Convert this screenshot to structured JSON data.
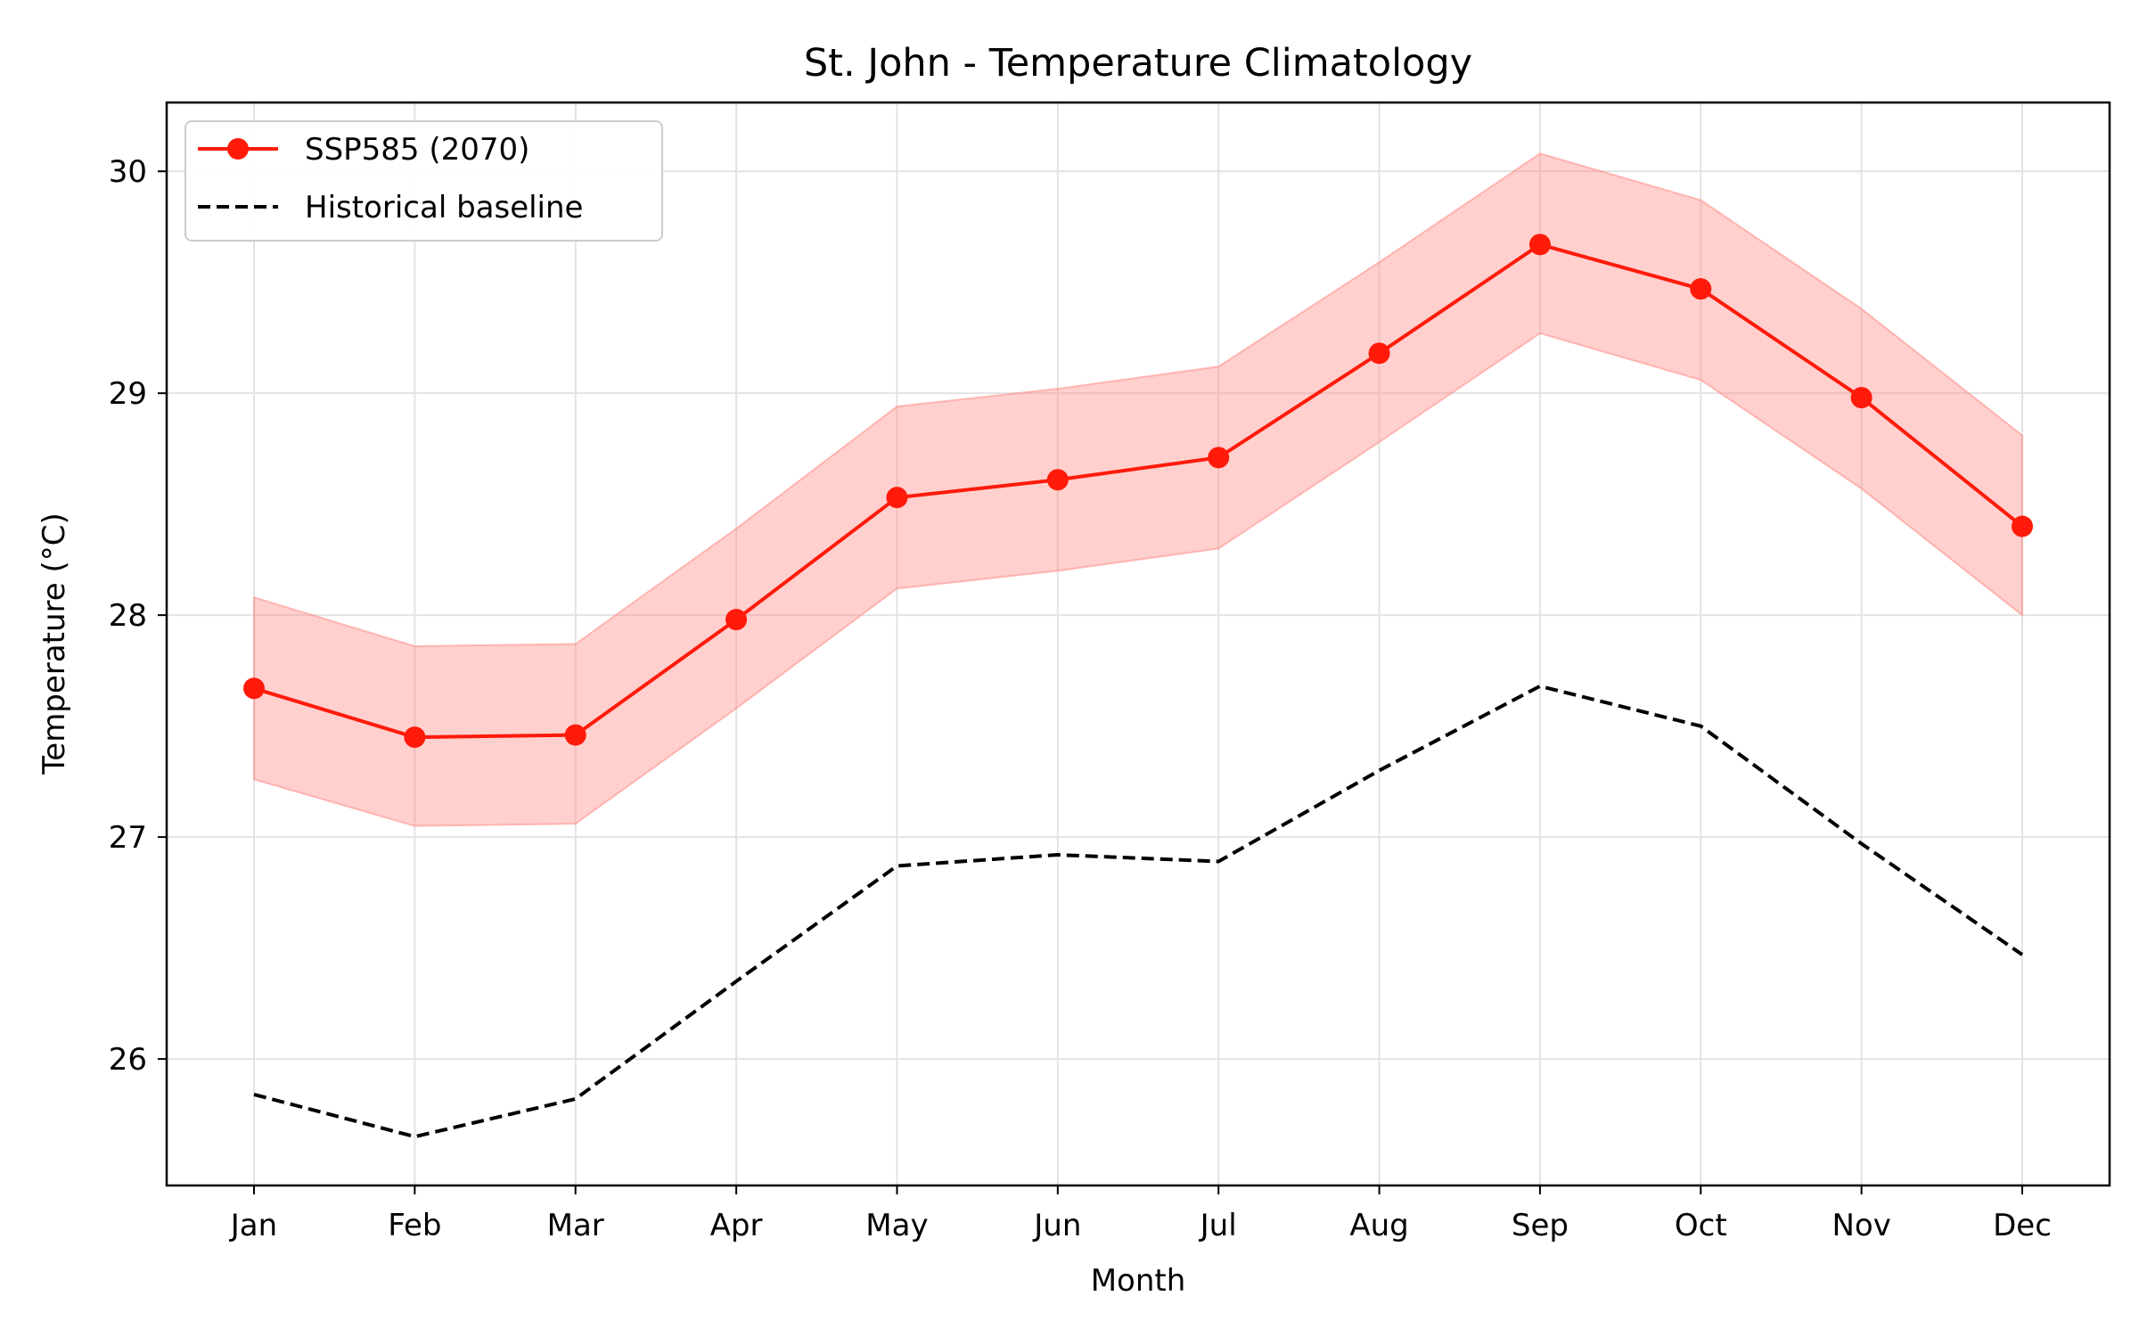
{
  "chart_data": {
    "type": "line",
    "title": "St. John - Temperature Climatology",
    "xlabel": "Month",
    "ylabel": "Temperature (°C)",
    "categories": [
      "Jan",
      "Feb",
      "Mar",
      "Apr",
      "May",
      "Jun",
      "Jul",
      "Aug",
      "Sep",
      "Oct",
      "Nov",
      "Dec"
    ],
    "ylim": [
      25.43,
      30.31
    ],
    "yticks": [
      26,
      27,
      28,
      29,
      30
    ],
    "grid": true,
    "legend_position": "top-left",
    "series": [
      {
        "name": "SSP585 (2070)",
        "style": "solid line with circle markers",
        "color": "#ff1a0a",
        "values": [
          27.67,
          27.45,
          27.46,
          27.98,
          28.53,
          28.61,
          28.71,
          29.18,
          29.67,
          29.47,
          28.98,
          28.4
        ],
        "band_lower": [
          27.26,
          27.05,
          27.06,
          27.58,
          28.12,
          28.2,
          28.3,
          28.78,
          29.27,
          29.06,
          28.57,
          28.0
        ],
        "band_upper": [
          28.08,
          27.86,
          27.87,
          28.39,
          28.94,
          29.02,
          29.12,
          29.59,
          30.08,
          29.87,
          29.38,
          28.81
        ],
        "band_color": "#ff8a85"
      },
      {
        "name": "Historical baseline",
        "style": "dashed line",
        "color": "#000000",
        "values": [
          25.84,
          25.65,
          25.82,
          26.35,
          26.87,
          26.92,
          26.89,
          27.3,
          27.68,
          27.5,
          26.97,
          26.47
        ]
      }
    ]
  }
}
